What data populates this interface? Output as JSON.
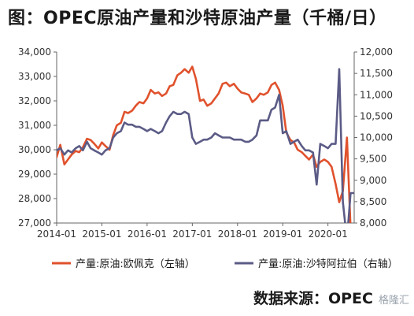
{
  "title": "图：OPEC原油产量和沙特原油产量（千桶/日）",
  "source": "数据来源：OPEC",
  "watermark": "格隆汇",
  "chart_data": {
    "type": "line",
    "x_tick_labels": [
      "2014-01",
      "2015-01",
      "2016-01",
      "2017-01",
      "2018-01",
      "2019-01",
      "2020-01"
    ],
    "y_left": {
      "range": [
        27000,
        34000
      ],
      "tick_labels": [
        "27,000",
        "28,000",
        "29,000",
        "30,000",
        "31,000",
        "32,000",
        "33,000",
        "34,000"
      ]
    },
    "y_right": {
      "range": [
        8000,
        12000
      ],
      "tick_labels": [
        "8,000",
        "8,500",
        "9,000",
        "9,500",
        "10,000",
        "10,500",
        "11,000",
        "11,500",
        "12,000"
      ]
    },
    "series": [
      {
        "name": "产量:原油:欧佩克（左轴）",
        "axis": "left",
        "color": "#e0522d",
        "points": [
          [
            2014.0,
            29700
          ],
          [
            2014.08,
            30200
          ],
          [
            2014.17,
            29400
          ],
          [
            2014.25,
            29600
          ],
          [
            2014.33,
            29800
          ],
          [
            2014.42,
            29950
          ],
          [
            2014.5,
            29900
          ],
          [
            2014.58,
            30100
          ],
          [
            2014.67,
            30450
          ],
          [
            2014.75,
            30400
          ],
          [
            2014.83,
            30250
          ],
          [
            2014.92,
            30050
          ],
          [
            2015.0,
            30300
          ],
          [
            2015.08,
            30150
          ],
          [
            2015.17,
            30000
          ],
          [
            2015.25,
            30600
          ],
          [
            2015.33,
            31000
          ],
          [
            2015.42,
            31100
          ],
          [
            2015.5,
            31550
          ],
          [
            2015.58,
            31500
          ],
          [
            2015.67,
            31600
          ],
          [
            2015.75,
            31800
          ],
          [
            2015.83,
            31950
          ],
          [
            2015.92,
            31900
          ],
          [
            2016.0,
            32100
          ],
          [
            2016.08,
            32450
          ],
          [
            2016.17,
            32300
          ],
          [
            2016.25,
            32350
          ],
          [
            2016.33,
            32200
          ],
          [
            2016.42,
            32300
          ],
          [
            2016.5,
            32600
          ],
          [
            2016.58,
            32650
          ],
          [
            2016.67,
            33050
          ],
          [
            2016.75,
            33150
          ],
          [
            2016.83,
            33300
          ],
          [
            2016.92,
            33150
          ],
          [
            2017.0,
            33400
          ],
          [
            2017.08,
            32900
          ],
          [
            2017.17,
            32000
          ],
          [
            2017.25,
            32050
          ],
          [
            2017.33,
            31800
          ],
          [
            2017.42,
            31900
          ],
          [
            2017.5,
            32100
          ],
          [
            2017.58,
            32300
          ],
          [
            2017.67,
            32700
          ],
          [
            2017.75,
            32750
          ],
          [
            2017.83,
            32600
          ],
          [
            2017.92,
            32700
          ],
          [
            2018.0,
            32500
          ],
          [
            2018.08,
            32350
          ],
          [
            2018.17,
            32300
          ],
          [
            2018.25,
            32250
          ],
          [
            2018.33,
            31950
          ],
          [
            2018.42,
            32100
          ],
          [
            2018.5,
            32300
          ],
          [
            2018.58,
            32250
          ],
          [
            2018.67,
            32350
          ],
          [
            2018.75,
            32650
          ],
          [
            2018.83,
            32750
          ],
          [
            2018.92,
            32450
          ],
          [
            2019.0,
            31800
          ],
          [
            2019.08,
            30700
          ],
          [
            2019.17,
            30400
          ],
          [
            2019.25,
            30300
          ],
          [
            2019.33,
            30000
          ],
          [
            2019.42,
            29900
          ],
          [
            2019.5,
            29750
          ],
          [
            2019.58,
            29600
          ],
          [
            2019.67,
            29800
          ],
          [
            2019.75,
            29300
          ],
          [
            2019.83,
            29500
          ],
          [
            2019.92,
            29600
          ],
          [
            2020.0,
            29500
          ],
          [
            2020.08,
            29300
          ],
          [
            2020.17,
            28600
          ],
          [
            2020.25,
            27850
          ],
          [
            2020.33,
            28300
          ],
          [
            2020.42,
            30500
          ],
          [
            2020.5,
            26800
          ],
          [
            2020.58,
            26500
          ]
        ]
      },
      {
        "name": "产量:原油:沙特阿拉伯（右轴）",
        "axis": "right",
        "color": "#5b5b86",
        "points": [
          [
            2014.0,
            9700
          ],
          [
            2014.08,
            9750
          ],
          [
            2014.17,
            9600
          ],
          [
            2014.25,
            9700
          ],
          [
            2014.33,
            9650
          ],
          [
            2014.42,
            9750
          ],
          [
            2014.5,
            9800
          ],
          [
            2014.58,
            9700
          ],
          [
            2014.67,
            9900
          ],
          [
            2014.75,
            9750
          ],
          [
            2014.83,
            9700
          ],
          [
            2014.92,
            9650
          ],
          [
            2015.0,
            9600
          ],
          [
            2015.08,
            9700
          ],
          [
            2015.17,
            9750
          ],
          [
            2015.25,
            10000
          ],
          [
            2015.33,
            10100
          ],
          [
            2015.42,
            10150
          ],
          [
            2015.5,
            10350
          ],
          [
            2015.58,
            10300
          ],
          [
            2015.67,
            10300
          ],
          [
            2015.75,
            10250
          ],
          [
            2015.83,
            10250
          ],
          [
            2015.92,
            10200
          ],
          [
            2016.0,
            10150
          ],
          [
            2016.08,
            10200
          ],
          [
            2016.17,
            10150
          ],
          [
            2016.25,
            10100
          ],
          [
            2016.33,
            10150
          ],
          [
            2016.42,
            10350
          ],
          [
            2016.5,
            10500
          ],
          [
            2016.58,
            10600
          ],
          [
            2016.67,
            10550
          ],
          [
            2016.75,
            10550
          ],
          [
            2016.83,
            10600
          ],
          [
            2016.92,
            10550
          ],
          [
            2017.0,
            10000
          ],
          [
            2017.08,
            9850
          ],
          [
            2017.17,
            9900
          ],
          [
            2017.25,
            9950
          ],
          [
            2017.33,
            9950
          ],
          [
            2017.42,
            10000
          ],
          [
            2017.5,
            10100
          ],
          [
            2017.58,
            10050
          ],
          [
            2017.67,
            10000
          ],
          [
            2017.75,
            10000
          ],
          [
            2017.83,
            10000
          ],
          [
            2017.92,
            9950
          ],
          [
            2018.0,
            9950
          ],
          [
            2018.08,
            9950
          ],
          [
            2018.17,
            9900
          ],
          [
            2018.25,
            9900
          ],
          [
            2018.33,
            9950
          ],
          [
            2018.42,
            10050
          ],
          [
            2018.5,
            10400
          ],
          [
            2018.58,
            10400
          ],
          [
            2018.67,
            10400
          ],
          [
            2018.75,
            10650
          ],
          [
            2018.83,
            10700
          ],
          [
            2018.92,
            11000
          ],
          [
            2019.0,
            10100
          ],
          [
            2019.08,
            10150
          ],
          [
            2019.17,
            9850
          ],
          [
            2019.25,
            9900
          ],
          [
            2019.33,
            9950
          ],
          [
            2019.42,
            9800
          ],
          [
            2019.5,
            9700
          ],
          [
            2019.58,
            9700
          ],
          [
            2019.67,
            9650
          ],
          [
            2019.75,
            8900
          ],
          [
            2019.83,
            9850
          ],
          [
            2019.92,
            9800
          ],
          [
            2020.0,
            9750
          ],
          [
            2020.08,
            9850
          ],
          [
            2020.17,
            9850
          ],
          [
            2020.25,
            11600
          ],
          [
            2020.33,
            8500
          ],
          [
            2020.42,
            7600
          ],
          [
            2020.5,
            8700
          ],
          [
            2020.58,
            8700
          ]
        ]
      }
    ],
    "grid": false,
    "legend_position": "bottom"
  }
}
